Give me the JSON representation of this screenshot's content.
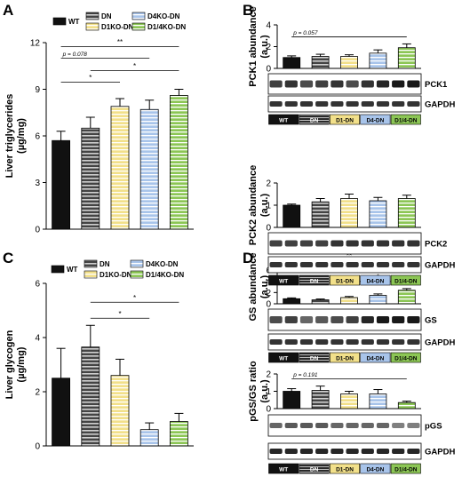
{
  "colors": {
    "WT": "#111111",
    "DN": "#444444",
    "D1KO": "#f2e08a",
    "D4KO": "#a8c4ea",
    "D1/4KO": "#8cc655"
  },
  "legend": [
    {
      "key": "WT",
      "label": "WT",
      "pattern": "solid"
    },
    {
      "key": "DN",
      "label": "DN",
      "pattern": "stripe"
    },
    {
      "key": "D1KO",
      "label": "D1KO-DN",
      "pattern": "stripe"
    },
    {
      "key": "D4KO",
      "label": "D4KO-DN",
      "pattern": "stripe"
    },
    {
      "key": "D1/4KO",
      "label": "D1/4KO-DN",
      "pattern": "stripe"
    }
  ],
  "lane_labels": [
    "WT",
    "DN",
    "D1-DN",
    "D4-DN",
    "D1/4-DN"
  ],
  "chart_data": [
    {
      "panel": "A",
      "type": "bar",
      "categories": [
        "WT",
        "DN",
        "D1KO-DN",
        "D4KO-DN",
        "D1/4KO-DN"
      ],
      "values": [
        5.7,
        6.5,
        7.9,
        7.7,
        8.6
      ],
      "errors": [
        0.6,
        0.7,
        0.5,
        0.6,
        0.4
      ],
      "ylabel": [
        "Liver triglycerides",
        "(µg/mg)"
      ],
      "ylim": [
        0,
        12
      ],
      "yticks": [
        0,
        3,
        6,
        9,
        12
      ],
      "significance": [
        {
          "from": 0,
          "to": 4,
          "label": "**"
        },
        {
          "from": 0,
          "to": 3,
          "label": "p = 0.078"
        },
        {
          "from": 1,
          "to": 4,
          "label": "*"
        },
        {
          "from": 0,
          "to": 2,
          "label": "*"
        }
      ]
    },
    {
      "panel": "B",
      "type": "bar",
      "categories": [
        "WT",
        "DN",
        "D1-DN",
        "D4-DN",
        "D1/4-DN"
      ],
      "values": [
        1.0,
        1.1,
        1.1,
        1.4,
        1.9
      ],
      "errors": [
        0.15,
        0.2,
        0.15,
        0.3,
        0.35
      ],
      "ylabel": [
        "PCK1 abundance",
        "(a.u.)"
      ],
      "ylim": [
        0,
        4
      ],
      "yticks": [
        0,
        2,
        4
      ],
      "significance": [
        {
          "from": 0,
          "to": 4,
          "label": "p = 0.057"
        }
      ],
      "blots": [
        "PCK1",
        "GAPDH"
      ]
    },
    {
      "panel": "B2",
      "type": "bar",
      "categories": [
        "WT",
        "DN",
        "D1-DN",
        "D4-DN",
        "D1/4-DN"
      ],
      "values": [
        1.0,
        1.15,
        1.3,
        1.2,
        1.3
      ],
      "errors": [
        0.05,
        0.15,
        0.2,
        0.15,
        0.15
      ],
      "ylabel": [
        "PCK2 abundance",
        "(a.u.)"
      ],
      "ylim": [
        0,
        2
      ],
      "yticks": [
        0,
        1,
        2
      ],
      "significance": [],
      "blots": [
        "PCK2",
        "GAPDH"
      ]
    },
    {
      "panel": "C",
      "type": "bar",
      "categories": [
        "WT",
        "DN",
        "D1KO-DN",
        "D4KO-DN",
        "D1/4KO-DN"
      ],
      "values": [
        2.5,
        3.65,
        2.6,
        0.6,
        0.9
      ],
      "errors": [
        1.1,
        0.8,
        0.6,
        0.25,
        0.3
      ],
      "ylabel": [
        "Liver glycogen",
        "(µg/mg)"
      ],
      "ylim": [
        0,
        6
      ],
      "yticks": [
        0,
        2,
        4,
        6
      ],
      "significance": [
        {
          "from": 1,
          "to": 4,
          "label": "*"
        },
        {
          "from": 1,
          "to": 3,
          "label": "*"
        }
      ]
    },
    {
      "panel": "D",
      "type": "bar",
      "categories": [
        "WT",
        "DN",
        "D1-DN",
        "D4-DN",
        "D1/4-DN"
      ],
      "values": [
        0.9,
        0.7,
        1.1,
        1.5,
        2.4
      ],
      "errors": [
        0.15,
        0.15,
        0.2,
        0.25,
        0.3
      ],
      "ylabel": [
        "GS abundance",
        "(a.u.)"
      ],
      "ylim": [
        0,
        6
      ],
      "yticks": [
        0,
        2,
        4,
        6
      ],
      "significance": [
        {
          "from": 0,
          "to": 4,
          "label": "**"
        },
        {
          "from": 1,
          "to": 4,
          "label": "**"
        },
        {
          "from": 2,
          "to": 4,
          "label": "*"
        }
      ],
      "blots": [
        "GS",
        "GAPDH"
      ]
    },
    {
      "panel": "D2",
      "type": "bar",
      "categories": [
        "WT",
        "DN",
        "D1-DN",
        "D4-DN",
        "D1/4-DN"
      ],
      "values": [
        1.0,
        1.05,
        0.85,
        0.85,
        0.35
      ],
      "errors": [
        0.15,
        0.25,
        0.15,
        0.25,
        0.08
      ],
      "ylabel": [
        "pGS/GS ratio",
        "(a.u.)"
      ],
      "ylim": [
        0,
        2
      ],
      "yticks": [
        0,
        1,
        2
      ],
      "significance": [
        {
          "from": 0,
          "to": 4,
          "label": "p = 0.191"
        }
      ],
      "blots": [
        "pGS",
        "GAPDH"
      ]
    }
  ]
}
